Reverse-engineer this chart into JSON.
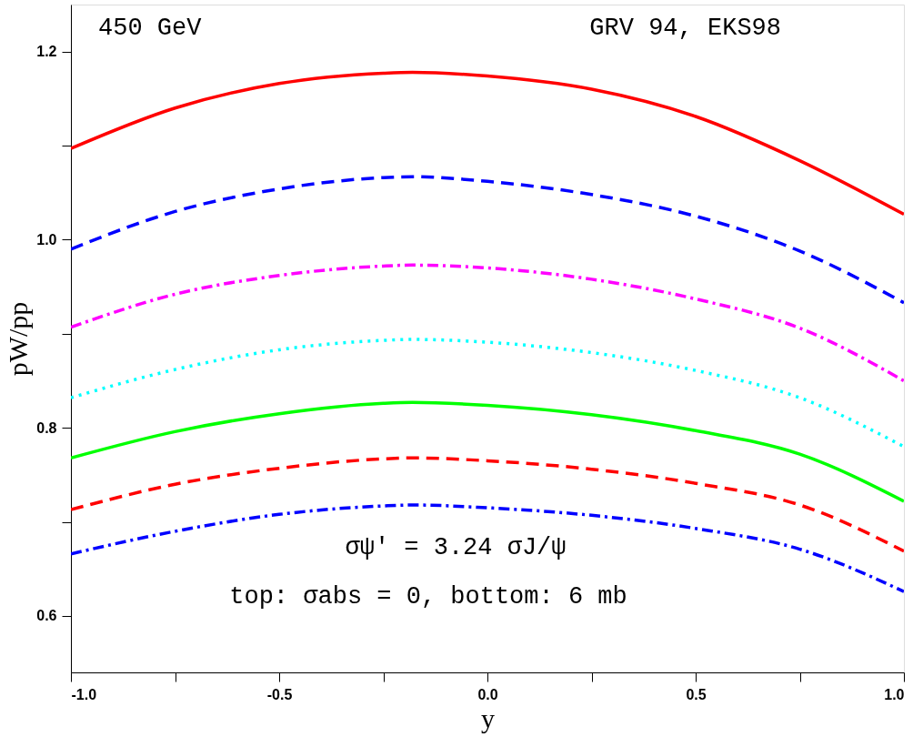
{
  "chart_data": {
    "type": "line",
    "xlabel": "y",
    "ylabel": "pW/pp",
    "annotations": [
      "450 GeV",
      "GRV 94, EKS98",
      "σψ′ = 3.24 σJ/ψ",
      "top: σabs = 0, bottom: 6 mb"
    ],
    "x": [
      -1.0,
      -0.75,
      -0.5,
      -0.25,
      -0.18,
      0.0,
      0.25,
      0.5,
      0.75,
      1.0
    ],
    "series": [
      {
        "color": "#ff0000",
        "line_style": "solid",
        "values": [
          1.097,
          1.14,
          1.166,
          1.177,
          1.178,
          1.174,
          1.16,
          1.131,
          1.084,
          1.027
        ]
      },
      {
        "color": "#0000ff",
        "line_style": "dashed",
        "values": [
          0.99,
          1.03,
          1.054,
          1.066,
          1.067,
          1.062,
          1.048,
          1.025,
          0.988,
          0.933
        ]
      },
      {
        "color": "#ff00ff",
        "line_style": "dashdot",
        "values": [
          0.907,
          0.942,
          0.962,
          0.972,
          0.973,
          0.97,
          0.958,
          0.937,
          0.906,
          0.85
        ]
      },
      {
        "color": "#00ffff",
        "line_style": "dotted",
        "values": [
          0.832,
          0.862,
          0.883,
          0.893,
          0.894,
          0.891,
          0.88,
          0.861,
          0.832,
          0.78
        ]
      },
      {
        "color": "#00ff00",
        "line_style": "solid",
        "values": [
          0.768,
          0.796,
          0.815,
          0.826,
          0.827,
          0.824,
          0.814,
          0.797,
          0.772,
          0.722
        ]
      },
      {
        "color": "#ff0000",
        "line_style": "dashed",
        "values": [
          0.713,
          0.74,
          0.757,
          0.767,
          0.768,
          0.765,
          0.756,
          0.741,
          0.718,
          0.669
        ]
      },
      {
        "color": "#0000ff",
        "line_style": "dashdot",
        "values": [
          0.666,
          0.69,
          0.708,
          0.717,
          0.718,
          0.715,
          0.707,
          0.693,
          0.671,
          0.626
        ]
      }
    ],
    "xlim": [
      -1.0,
      1.0
    ],
    "ylim": [
      0.54,
      1.25
    ],
    "xticks": [
      {
        "value": -1.0,
        "label": "-1.0"
      },
      {
        "value": -0.75,
        "label": null
      },
      {
        "value": -0.5,
        "label": "-0.5"
      },
      {
        "value": -0.25,
        "label": null
      },
      {
        "value": 0.0,
        "label": "0.0"
      },
      {
        "value": 0.25,
        "label": null
      },
      {
        "value": 0.5,
        "label": "0.5"
      },
      {
        "value": 0.75,
        "label": null
      },
      {
        "value": 1.0,
        "label": "1.0"
      }
    ],
    "yticks": [
      {
        "value": 0.6,
        "label": "0.6"
      },
      {
        "value": 0.7,
        "label": null
      },
      {
        "value": 0.8,
        "label": "0.8"
      },
      {
        "value": 0.9,
        "label": null
      },
      {
        "value": 1.0,
        "label": "1.0"
      },
      {
        "value": 1.1,
        "label": null
      },
      {
        "value": 1.2,
        "label": "1.2"
      }
    ],
    "grid": false
  }
}
